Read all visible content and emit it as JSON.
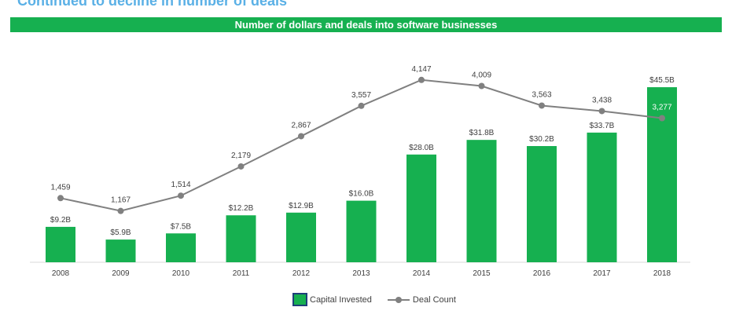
{
  "header": {
    "partial_title": "Continued to decline in number of deals",
    "banner_title": "Number of dollars and deals into software businesses"
  },
  "colors": {
    "bar": "#16b050",
    "line": "#808080",
    "text": "#404040"
  },
  "chart_data": {
    "type": "bar",
    "title": "Number of dollars and deals into software businesses",
    "categories": [
      "2008",
      "2009",
      "2010",
      "2011",
      "2012",
      "2013",
      "2014",
      "2015",
      "2016",
      "2017",
      "2018"
    ],
    "series": [
      {
        "name": "Capital Invested",
        "type": "bar",
        "values": [
          9.2,
          5.9,
          7.5,
          12.2,
          12.9,
          16.0,
          28.0,
          31.8,
          30.2,
          33.7,
          45.5
        ],
        "labels": [
          "$9.2B",
          "$5.9B",
          "$7.5B",
          "$12.2B",
          "$12.9B",
          "$16.0B",
          "$28.0B",
          "$31.8B",
          "$30.2B",
          "$33.7B",
          "$45.5B"
        ]
      },
      {
        "name": "Deal Count",
        "type": "line",
        "values": [
          1459,
          1167,
          1514,
          2179,
          2867,
          3557,
          4147,
          4009,
          3563,
          3438,
          3277
        ],
        "labels": [
          "1,459",
          "1,167",
          "1,514",
          "2,179",
          "2,867",
          "3,557",
          "4,147",
          "4,009",
          "3,563",
          "3,438",
          "3,277"
        ]
      }
    ],
    "ylim_bar": [
      0,
      50
    ],
    "ylim_line": [
      0,
      4500
    ],
    "grid": false,
    "legend": "bottom"
  },
  "legend": {
    "bar_label": "Capital Invested",
    "line_label": "Deal Count"
  }
}
